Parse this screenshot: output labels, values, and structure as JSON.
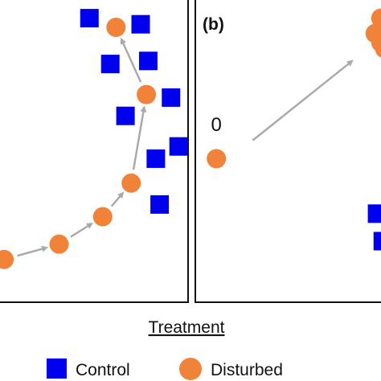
{
  "figure": {
    "xlabel": "Treatment",
    "legend": {
      "placement": "bottom",
      "entries": [
        {
          "name": "Control",
          "marker": "square",
          "color": "#0000ee"
        },
        {
          "name": "Disturbed",
          "marker": "circle",
          "color": "#f0823a"
        }
      ]
    },
    "arrow_color": "#aaaaaa",
    "frame_color": "#111111"
  },
  "chart_data": [
    {
      "type": "scatter",
      "panel": "a",
      "panel_label": "",
      "series": [
        {
          "name": "Control",
          "points": [
            [
              0.48,
              0.93
            ],
            [
              0.75,
              0.91
            ],
            [
              0.59,
              0.78
            ],
            [
              0.79,
              0.79
            ],
            [
              0.91,
              0.67
            ],
            [
              0.67,
              0.61
            ],
            [
              0.95,
              0.51
            ],
            [
              0.83,
              0.47
            ],
            [
              0.85,
              0.32
            ]
          ]
        },
        {
          "name": "Disturbed",
          "points": [
            [
              0.03,
              0.14
            ],
            [
              0.32,
              0.19
            ],
            [
              0.55,
              0.28
            ],
            [
              0.7,
              0.39
            ],
            [
              0.78,
              0.68
            ],
            [
              0.62,
              0.9
            ]
          ]
        }
      ],
      "trajectory": [
        [
          0.03,
          0.14
        ],
        [
          0.32,
          0.19
        ],
        [
          0.55,
          0.28
        ],
        [
          0.7,
          0.39
        ],
        [
          0.78,
          0.68
        ],
        [
          0.62,
          0.9
        ]
      ],
      "annotations": []
    },
    {
      "type": "scatter",
      "panel": "b",
      "panel_label": "(b)",
      "series": [
        {
          "name": "Control",
          "points": [
            [
              0.95,
              0.29
            ],
            [
              0.98,
              0.2
            ]
          ]
        },
        {
          "name": "Disturbed",
          "points": [
            [
              0.11,
              0.47
            ],
            [
              0.94,
              0.88
            ],
            [
              0.97,
              0.93
            ],
            [
              0.99,
              0.83
            ],
            [
              0.97,
              0.85
            ],
            [
              0.99,
              0.9
            ]
          ]
        }
      ],
      "trajectory_arrow": {
        "from": [
          0.3,
          0.53
        ],
        "to": [
          0.82,
          0.79
        ]
      },
      "annotations": [
        {
          "text": "0",
          "at": [
            0.11,
            0.56
          ]
        }
      ]
    }
  ]
}
